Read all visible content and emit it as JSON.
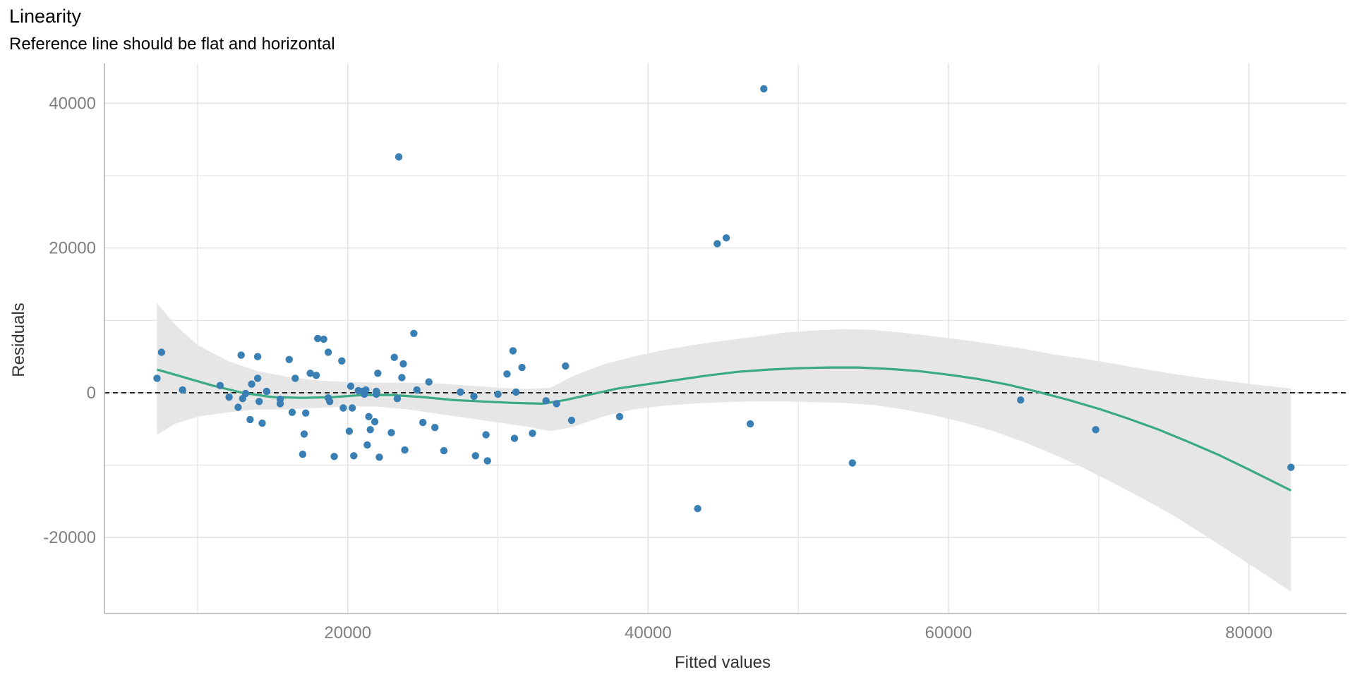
{
  "chart_data": {
    "type": "scatter",
    "title": "Linearity",
    "subtitle": "Reference line should be flat and horizontal",
    "xlabel": "Fitted values",
    "ylabel": "Residuals",
    "xlim": [
      3800,
      86500
    ],
    "ylim": [
      -30500,
      45500
    ],
    "x_major_ticks": [
      20000,
      40000,
      60000,
      80000
    ],
    "x_minor_ticks": [
      10000,
      30000,
      50000,
      70000
    ],
    "y_major_ticks": [
      -20000,
      0,
      20000,
      40000
    ],
    "y_minor_ticks": [
      -10000,
      10000,
      30000
    ],
    "grid": true,
    "reference_line": {
      "y": 0,
      "style": "dashed",
      "color": "#000000"
    },
    "colors": {
      "points": "#3a7fb4",
      "smooth": "#3aaa82",
      "band": "#e6e6e6",
      "grid": "#e3e3e3"
    },
    "points": [
      {
        "x": 7300,
        "y": 2000
      },
      {
        "x": 7600,
        "y": 5600
      },
      {
        "x": 9000,
        "y": 400
      },
      {
        "x": 11500,
        "y": 1000
      },
      {
        "x": 12100,
        "y": -600
      },
      {
        "x": 12700,
        "y": -2000
      },
      {
        "x": 12900,
        "y": 5200
      },
      {
        "x": 13000,
        "y": -800
      },
      {
        "x": 13200,
        "y": -100
      },
      {
        "x": 13500,
        "y": -3700
      },
      {
        "x": 13600,
        "y": 1200
      },
      {
        "x": 14000,
        "y": 2000
      },
      {
        "x": 14000,
        "y": 5000
      },
      {
        "x": 14100,
        "y": -1200
      },
      {
        "x": 14300,
        "y": -4200
      },
      {
        "x": 14600,
        "y": 200
      },
      {
        "x": 15500,
        "y": -1500
      },
      {
        "x": 15500,
        "y": -900
      },
      {
        "x": 16100,
        "y": 4600
      },
      {
        "x": 16300,
        "y": -2700
      },
      {
        "x": 16500,
        "y": 2000
      },
      {
        "x": 17000,
        "y": -8500
      },
      {
        "x": 17100,
        "y": -5700
      },
      {
        "x": 17200,
        "y": -2800
      },
      {
        "x": 17500,
        "y": 2700
      },
      {
        "x": 17900,
        "y": 2400
      },
      {
        "x": 18000,
        "y": 7500
      },
      {
        "x": 18400,
        "y": 7400
      },
      {
        "x": 18700,
        "y": 5600
      },
      {
        "x": 18700,
        "y": -700
      },
      {
        "x": 18800,
        "y": -1200
      },
      {
        "x": 19100,
        "y": -8800
      },
      {
        "x": 19600,
        "y": 4400
      },
      {
        "x": 19700,
        "y": -2100
      },
      {
        "x": 20100,
        "y": -5300
      },
      {
        "x": 20200,
        "y": 900
      },
      {
        "x": 20300,
        "y": -2100
      },
      {
        "x": 20400,
        "y": -8700
      },
      {
        "x": 20700,
        "y": 300
      },
      {
        "x": 21000,
        "y": 200
      },
      {
        "x": 21100,
        "y": -200
      },
      {
        "x": 21200,
        "y": 400
      },
      {
        "x": 21300,
        "y": -7200
      },
      {
        "x": 21400,
        "y": -3300
      },
      {
        "x": 21500,
        "y": -5100
      },
      {
        "x": 21800,
        "y": -4000
      },
      {
        "x": 21900,
        "y": -200
      },
      {
        "x": 21900,
        "y": 200
      },
      {
        "x": 22000,
        "y": 2700
      },
      {
        "x": 22100,
        "y": -8900
      },
      {
        "x": 22900,
        "y": -5500
      },
      {
        "x": 23100,
        "y": 4900
      },
      {
        "x": 23300,
        "y": -800
      },
      {
        "x": 23400,
        "y": 32600
      },
      {
        "x": 23600,
        "y": 2100
      },
      {
        "x": 23700,
        "y": 4000
      },
      {
        "x": 23800,
        "y": -7900
      },
      {
        "x": 24400,
        "y": 8200
      },
      {
        "x": 24600,
        "y": 400
      },
      {
        "x": 25000,
        "y": -4100
      },
      {
        "x": 25400,
        "y": 1500
      },
      {
        "x": 25800,
        "y": -4800
      },
      {
        "x": 26400,
        "y": -8000
      },
      {
        "x": 27500,
        "y": 100
      },
      {
        "x": 28400,
        "y": -500
      },
      {
        "x": 28500,
        "y": -8700
      },
      {
        "x": 29200,
        "y": -5800
      },
      {
        "x": 29300,
        "y": -9400
      },
      {
        "x": 30000,
        "y": -200
      },
      {
        "x": 30600,
        "y": 2600
      },
      {
        "x": 31000,
        "y": 5800
      },
      {
        "x": 31100,
        "y": -6300
      },
      {
        "x": 31200,
        "y": 100
      },
      {
        "x": 31600,
        "y": 3500
      },
      {
        "x": 32300,
        "y": -5600
      },
      {
        "x": 33200,
        "y": -1100
      },
      {
        "x": 33900,
        "y": -1500
      },
      {
        "x": 34500,
        "y": 3700
      },
      {
        "x": 34900,
        "y": -3800
      },
      {
        "x": 38100,
        "y": -3300
      },
      {
        "x": 43300,
        "y": -16000
      },
      {
        "x": 44600,
        "y": 20600
      },
      {
        "x": 45200,
        "y": 21400
      },
      {
        "x": 46800,
        "y": -4300
      },
      {
        "x": 47700,
        "y": 42000
      },
      {
        "x": 53600,
        "y": -9700
      },
      {
        "x": 64800,
        "y": -1000
      },
      {
        "x": 69800,
        "y": -5100
      },
      {
        "x": 82800,
        "y": -10300
      }
    ],
    "smooth_line": [
      [
        7300,
        3200
      ],
      [
        9000,
        2200
      ],
      [
        11000,
        1000
      ],
      [
        13000,
        0
      ],
      [
        15000,
        -600
      ],
      [
        17000,
        -700
      ],
      [
        19000,
        -600
      ],
      [
        21000,
        -300
      ],
      [
        23000,
        -300
      ],
      [
        25000,
        -600
      ],
      [
        27000,
        -1000
      ],
      [
        29000,
        -1200
      ],
      [
        31000,
        -1400
      ],
      [
        33000,
        -1500
      ],
      [
        34500,
        -1000
      ],
      [
        36000,
        -300
      ],
      [
        38000,
        600
      ],
      [
        40000,
        1200
      ],
      [
        42000,
        1800
      ],
      [
        44000,
        2400
      ],
      [
        46000,
        2900
      ],
      [
        48000,
        3200
      ],
      [
        50000,
        3400
      ],
      [
        52000,
        3500
      ],
      [
        54000,
        3500
      ],
      [
        56000,
        3300
      ],
      [
        58000,
        3000
      ],
      [
        60000,
        2500
      ],
      [
        62000,
        1900
      ],
      [
        64000,
        1100
      ],
      [
        66000,
        100
      ],
      [
        68000,
        -1000
      ],
      [
        70000,
        -2200
      ],
      [
        72000,
        -3600
      ],
      [
        74000,
        -5100
      ],
      [
        76000,
        -6800
      ],
      [
        78000,
        -8600
      ],
      [
        80000,
        -10600
      ],
      [
        82800,
        -13500
      ]
    ],
    "confidence_band": [
      [
        7300,
        -5800,
        12400
      ],
      [
        8500,
        -4300,
        9400
      ],
      [
        10000,
        -3300,
        6600
      ],
      [
        12000,
        -2700,
        4400
      ],
      [
        14000,
        -2300,
        3000
      ],
      [
        16000,
        -2300,
        2200
      ],
      [
        18000,
        -2100,
        1700
      ],
      [
        20000,
        -1900,
        1500
      ],
      [
        22000,
        -1900,
        1400
      ],
      [
        24000,
        -2300,
        1400
      ],
      [
        26000,
        -2900,
        1300
      ],
      [
        28000,
        -3500,
        1000
      ],
      [
        30000,
        -4100,
        700
      ],
      [
        32000,
        -4700,
        500
      ],
      [
        33500,
        -5300,
        700
      ],
      [
        35000,
        -4700,
        2300
      ],
      [
        37000,
        -3300,
        3900
      ],
      [
        39000,
        -2300,
        5000
      ],
      [
        41000,
        -1800,
        5900
      ],
      [
        43000,
        -1500,
        6600
      ],
      [
        45000,
        -1300,
        7200
      ],
      [
        47000,
        -1200,
        7700
      ],
      [
        49000,
        -1200,
        8300
      ],
      [
        51000,
        -1300,
        8600
      ],
      [
        53000,
        -1400,
        8800
      ],
      [
        55000,
        -1700,
        8700
      ],
      [
        57000,
        -2300,
        8300
      ],
      [
        59000,
        -3100,
        7800
      ],
      [
        61000,
        -4100,
        7300
      ],
      [
        63000,
        -5300,
        6700
      ],
      [
        65000,
        -6800,
        6100
      ],
      [
        67000,
        -8500,
        5300
      ],
      [
        69000,
        -10400,
        4700
      ],
      [
        71000,
        -12500,
        4000
      ],
      [
        73000,
        -14700,
        3300
      ],
      [
        75000,
        -17000,
        2600
      ],
      [
        77000,
        -19600,
        2000
      ],
      [
        79000,
        -22300,
        1500
      ],
      [
        81000,
        -25000,
        1000
      ],
      [
        82800,
        -27500,
        600
      ]
    ]
  }
}
